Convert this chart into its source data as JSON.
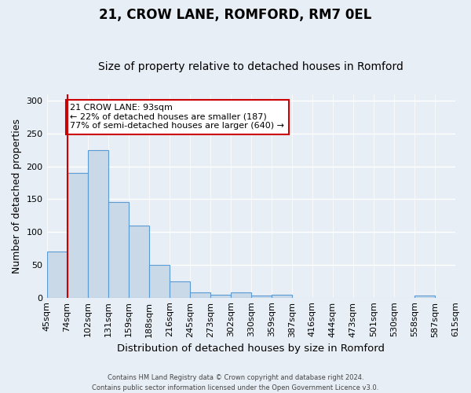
{
  "title": "21, CROW LANE, ROMFORD, RM7 0EL",
  "subtitle": "Size of property relative to detached houses in Romford",
  "xlabel": "Distribution of detached houses by size in Romford",
  "ylabel": "Number of detached properties",
  "bar_values": [
    70,
    190,
    225,
    145,
    110,
    50,
    25,
    8,
    5,
    8,
    3,
    4,
    0,
    0,
    0,
    0,
    0,
    0,
    3,
    0
  ],
  "bar_labels": [
    "45sqm",
    "74sqm",
    "102sqm",
    "131sqm",
    "159sqm",
    "188sqm",
    "216sqm",
    "245sqm",
    "273sqm",
    "302sqm",
    "330sqm",
    "359sqm",
    "387sqm",
    "416sqm",
    "444sqm",
    "473sqm",
    "501sqm",
    "530sqm",
    "558sqm",
    "587sqm",
    "615sqm"
  ],
  "bar_color": "#c9d9e8",
  "bar_edge_color": "#5b9bd5",
  "vline_color": "#cc0000",
  "vline_x_index": 1,
  "annotation_text": "21 CROW LANE: 93sqm\n← 22% of detached houses are smaller (187)\n77% of semi-detached houses are larger (640) →",
  "annotation_box_color": "#ffffff",
  "annotation_box_edge": "#cc0000",
  "ylim": [
    0,
    310
  ],
  "yticks": [
    0,
    50,
    100,
    150,
    200,
    250,
    300
  ],
  "footer_text": "Contains HM Land Registry data © Crown copyright and database right 2024.\nContains public sector information licensed under the Open Government Licence v3.0.",
  "background_color": "#e8eef5",
  "grid_color": "#ffffff",
  "title_fontsize": 12,
  "subtitle_fontsize": 10,
  "label_fontsize": 9,
  "tick_fontsize": 8
}
